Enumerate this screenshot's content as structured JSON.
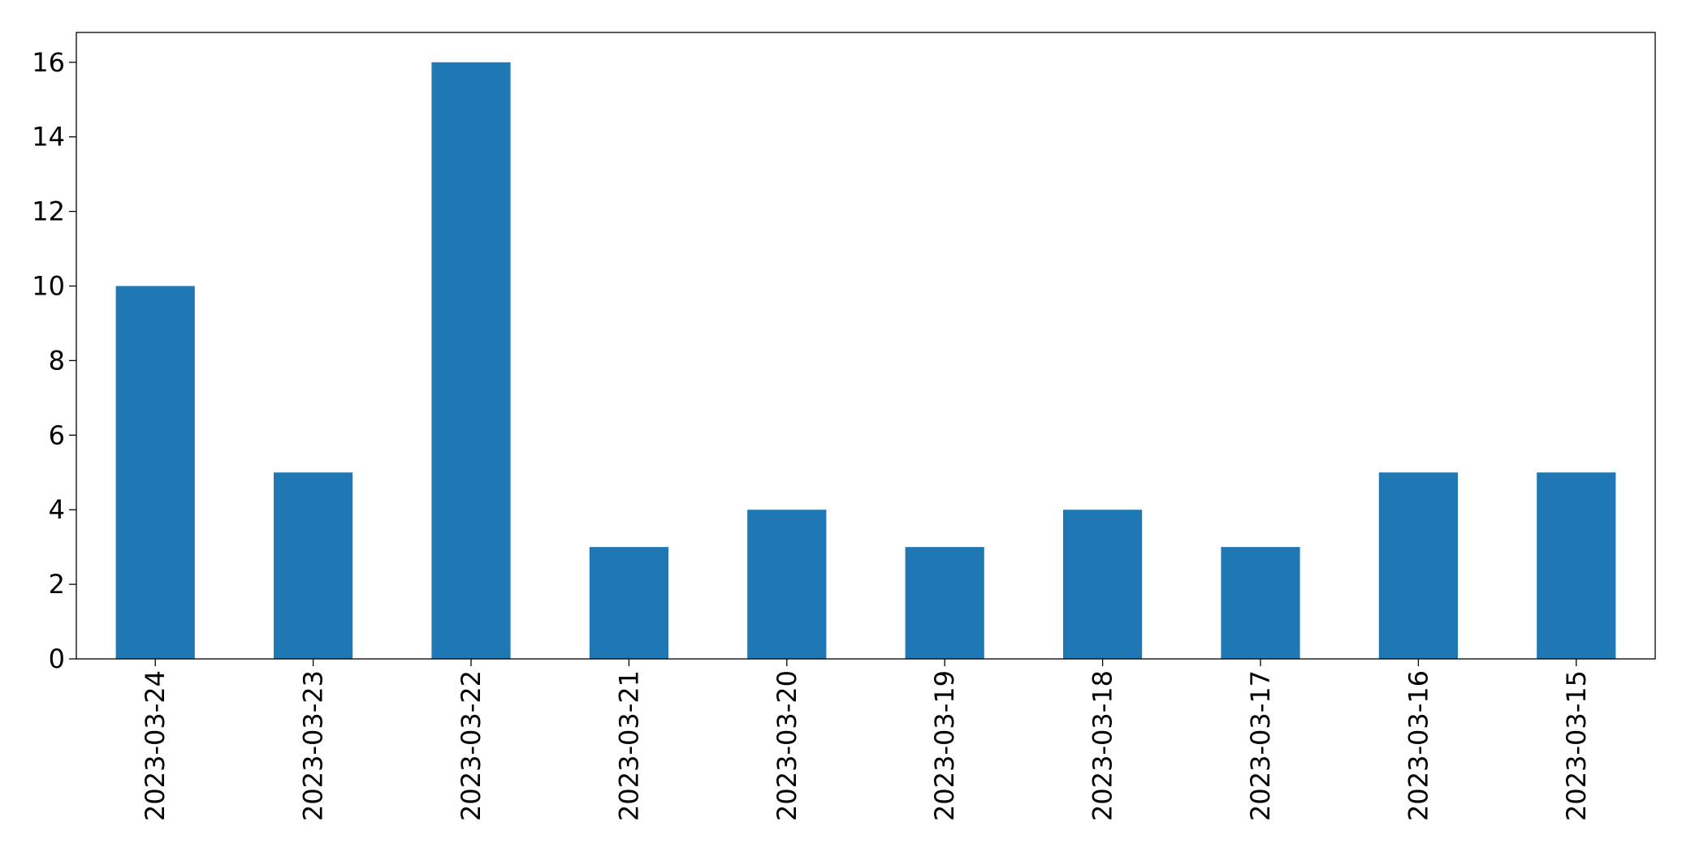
{
  "chart_data": {
    "type": "bar",
    "title": "",
    "xlabel": "",
    "ylabel": "",
    "categories": [
      "2023-03-24",
      "2023-03-23",
      "2023-03-22",
      "2023-03-21",
      "2023-03-20",
      "2023-03-19",
      "2023-03-18",
      "2023-03-17",
      "2023-03-16",
      "2023-03-15"
    ],
    "values": [
      10,
      5,
      16,
      3,
      4,
      3,
      4,
      3,
      5,
      5
    ],
    "ylim": [
      0,
      16.8
    ],
    "yticks": [
      0,
      2,
      4,
      6,
      8,
      10,
      12,
      14,
      16
    ],
    "bar_color": "#1f77b4",
    "grid": false,
    "legend": "none"
  }
}
